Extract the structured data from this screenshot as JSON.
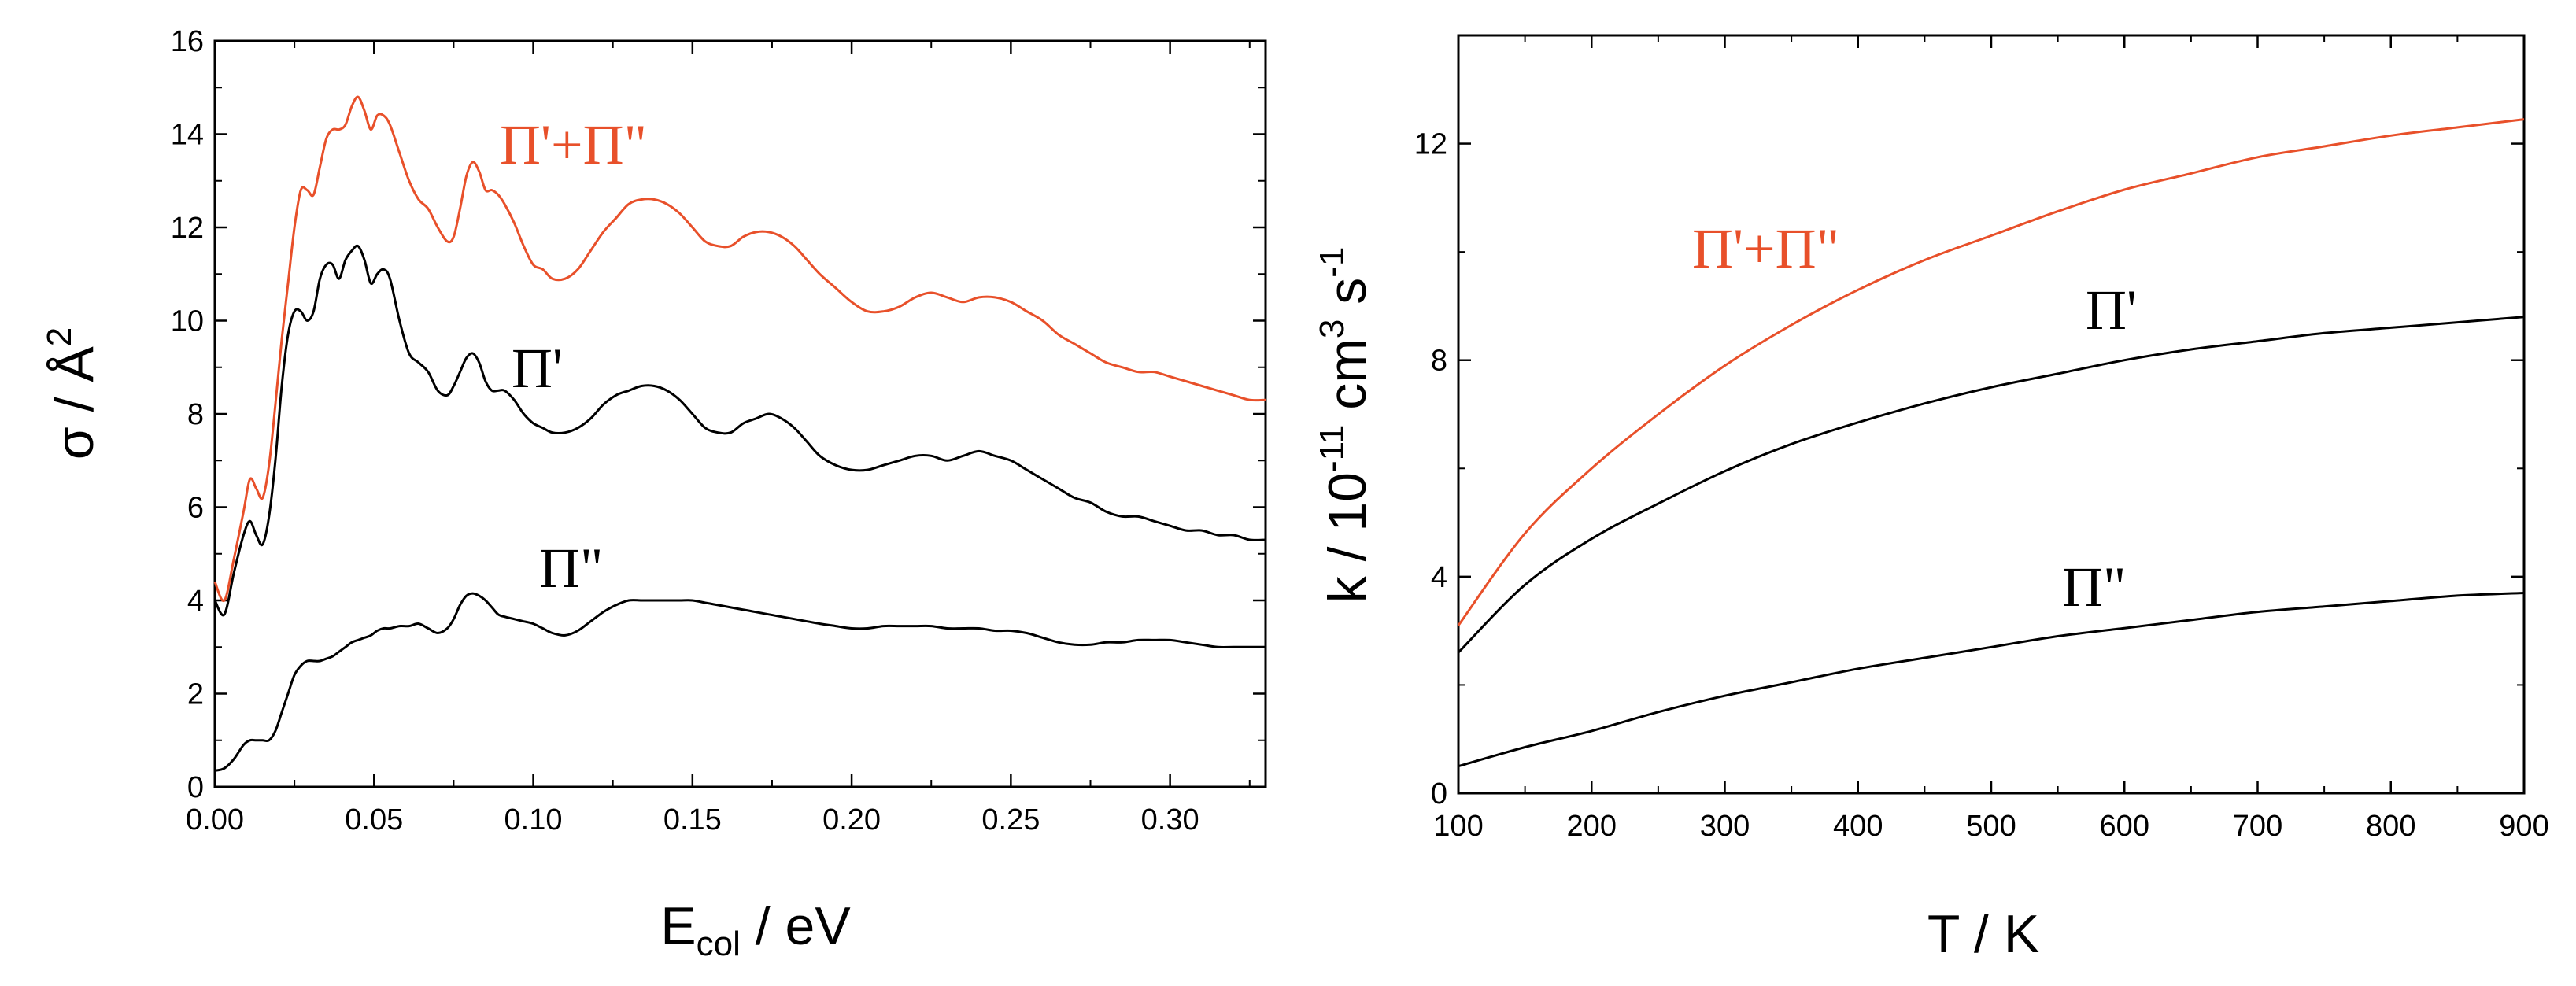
{
  "chart_data": [
    {
      "type": "line",
      "xlabel_main": "E",
      "xlabel_sub": "col",
      "xlabel_rest": " / eV",
      "ylabel_main": "σ / Å",
      "ylabel_sup": "2",
      "xlim": [
        0,
        0.33
      ],
      "ylim": [
        0,
        16
      ],
      "xticks": [
        0.0,
        0.05,
        0.1,
        0.15,
        0.2,
        0.25,
        0.3
      ],
      "xtick_labels": [
        "0.00",
        "0.05",
        "0.10",
        "0.15",
        "0.20",
        "0.25",
        "0.30"
      ],
      "yticks": [
        0,
        2,
        4,
        6,
        8,
        10,
        12,
        14,
        16
      ],
      "ytick_labels": [
        "0",
        "2",
        "4",
        "6",
        "8",
        "10",
        "12",
        "14",
        "16"
      ],
      "series": [
        {
          "name": "Π'+Π\"",
          "color": "#e8502a",
          "label": "Π'+Π\"",
          "x": [
            0.0,
            0.003,
            0.006,
            0.009,
            0.011,
            0.013,
            0.015,
            0.017,
            0.019,
            0.021,
            0.023,
            0.025,
            0.027,
            0.029,
            0.031,
            0.033,
            0.035,
            0.037,
            0.039,
            0.041,
            0.043,
            0.045,
            0.047,
            0.049,
            0.051,
            0.053,
            0.055,
            0.058,
            0.061,
            0.064,
            0.067,
            0.07,
            0.073,
            0.075,
            0.077,
            0.079,
            0.081,
            0.083,
            0.085,
            0.087,
            0.089,
            0.091,
            0.094,
            0.097,
            0.1,
            0.103,
            0.106,
            0.11,
            0.114,
            0.118,
            0.122,
            0.126,
            0.13,
            0.134,
            0.138,
            0.142,
            0.146,
            0.15,
            0.154,
            0.158,
            0.162,
            0.166,
            0.17,
            0.174,
            0.178,
            0.182,
            0.186,
            0.19,
            0.195,
            0.2,
            0.205,
            0.21,
            0.215,
            0.22,
            0.225,
            0.23,
            0.235,
            0.24,
            0.245,
            0.25,
            0.255,
            0.26,
            0.265,
            0.27,
            0.275,
            0.28,
            0.285,
            0.29,
            0.295,
            0.3,
            0.305,
            0.31,
            0.315,
            0.32,
            0.325,
            0.33
          ],
          "y": [
            4.4,
            4.0,
            4.9,
            5.9,
            6.6,
            6.4,
            6.2,
            6.9,
            8.2,
            9.6,
            10.8,
            12.0,
            12.8,
            12.8,
            12.7,
            13.3,
            13.9,
            14.1,
            14.1,
            14.2,
            14.6,
            14.8,
            14.5,
            14.1,
            14.4,
            14.4,
            14.2,
            13.6,
            13.0,
            12.6,
            12.4,
            12.0,
            11.7,
            11.8,
            12.4,
            13.1,
            13.4,
            13.2,
            12.8,
            12.8,
            12.7,
            12.5,
            12.1,
            11.6,
            11.2,
            11.1,
            10.9,
            10.9,
            11.1,
            11.5,
            11.9,
            12.2,
            12.5,
            12.6,
            12.6,
            12.5,
            12.3,
            12.0,
            11.7,
            11.6,
            11.6,
            11.8,
            11.9,
            11.9,
            11.8,
            11.6,
            11.3,
            11.0,
            10.7,
            10.4,
            10.2,
            10.2,
            10.3,
            10.5,
            10.6,
            10.5,
            10.4,
            10.5,
            10.5,
            10.4,
            10.2,
            10.0,
            9.7,
            9.5,
            9.3,
            9.1,
            9.0,
            8.9,
            8.9,
            8.8,
            8.7,
            8.6,
            8.5,
            8.4,
            8.3,
            8.3
          ]
        },
        {
          "name": "Π'",
          "color": "#000000",
          "label": "Π'",
          "x": [
            0.0,
            0.003,
            0.006,
            0.009,
            0.011,
            0.013,
            0.015,
            0.017,
            0.019,
            0.021,
            0.023,
            0.025,
            0.027,
            0.029,
            0.031,
            0.033,
            0.035,
            0.037,
            0.039,
            0.041,
            0.043,
            0.045,
            0.047,
            0.049,
            0.051,
            0.053,
            0.055,
            0.058,
            0.061,
            0.064,
            0.067,
            0.07,
            0.073,
            0.075,
            0.077,
            0.079,
            0.081,
            0.083,
            0.085,
            0.087,
            0.089,
            0.091,
            0.094,
            0.097,
            0.1,
            0.103,
            0.106,
            0.11,
            0.114,
            0.118,
            0.122,
            0.126,
            0.13,
            0.134,
            0.138,
            0.142,
            0.146,
            0.15,
            0.154,
            0.158,
            0.162,
            0.166,
            0.17,
            0.174,
            0.178,
            0.182,
            0.186,
            0.19,
            0.195,
            0.2,
            0.205,
            0.21,
            0.215,
            0.22,
            0.225,
            0.23,
            0.235,
            0.24,
            0.245,
            0.25,
            0.255,
            0.26,
            0.265,
            0.27,
            0.275,
            0.28,
            0.285,
            0.29,
            0.295,
            0.3,
            0.305,
            0.31,
            0.315,
            0.32,
            0.325,
            0.33
          ],
          "y": [
            4.0,
            3.7,
            4.6,
            5.4,
            5.7,
            5.4,
            5.2,
            5.8,
            7.0,
            8.6,
            9.7,
            10.2,
            10.2,
            10.0,
            10.2,
            10.9,
            11.2,
            11.2,
            10.9,
            11.3,
            11.5,
            11.6,
            11.3,
            10.8,
            11.0,
            11.1,
            10.9,
            10.0,
            9.3,
            9.1,
            8.9,
            8.5,
            8.4,
            8.6,
            8.9,
            9.2,
            9.3,
            9.1,
            8.7,
            8.5,
            8.5,
            8.5,
            8.3,
            8.0,
            7.8,
            7.7,
            7.6,
            7.6,
            7.7,
            7.9,
            8.2,
            8.4,
            8.5,
            8.6,
            8.6,
            8.5,
            8.3,
            8.0,
            7.7,
            7.6,
            7.6,
            7.8,
            7.9,
            8.0,
            7.9,
            7.7,
            7.4,
            7.1,
            6.9,
            6.8,
            6.8,
            6.9,
            7.0,
            7.1,
            7.1,
            7.0,
            7.1,
            7.2,
            7.1,
            7.0,
            6.8,
            6.6,
            6.4,
            6.2,
            6.1,
            5.9,
            5.8,
            5.8,
            5.7,
            5.6,
            5.5,
            5.5,
            5.4,
            5.4,
            5.3,
            5.3
          ]
        },
        {
          "name": "Π\"",
          "color": "#000000",
          "label": "Π\"",
          "x": [
            0.0,
            0.003,
            0.006,
            0.009,
            0.011,
            0.013,
            0.015,
            0.017,
            0.019,
            0.021,
            0.023,
            0.025,
            0.027,
            0.029,
            0.031,
            0.033,
            0.035,
            0.037,
            0.039,
            0.041,
            0.043,
            0.045,
            0.047,
            0.049,
            0.051,
            0.053,
            0.055,
            0.058,
            0.061,
            0.064,
            0.067,
            0.07,
            0.073,
            0.075,
            0.077,
            0.079,
            0.081,
            0.083,
            0.085,
            0.087,
            0.089,
            0.091,
            0.094,
            0.097,
            0.1,
            0.103,
            0.106,
            0.11,
            0.114,
            0.118,
            0.122,
            0.126,
            0.13,
            0.134,
            0.138,
            0.142,
            0.146,
            0.15,
            0.154,
            0.158,
            0.162,
            0.166,
            0.17,
            0.174,
            0.178,
            0.182,
            0.186,
            0.19,
            0.195,
            0.2,
            0.205,
            0.21,
            0.215,
            0.22,
            0.225,
            0.23,
            0.235,
            0.24,
            0.245,
            0.25,
            0.255,
            0.26,
            0.265,
            0.27,
            0.275,
            0.28,
            0.285,
            0.29,
            0.295,
            0.3,
            0.305,
            0.31,
            0.315,
            0.32,
            0.325,
            0.33
          ],
          "y": [
            0.35,
            0.4,
            0.6,
            0.9,
            1.0,
            1.0,
            1.0,
            1.0,
            1.2,
            1.6,
            2.0,
            2.4,
            2.6,
            2.7,
            2.7,
            2.7,
            2.75,
            2.8,
            2.9,
            3.0,
            3.1,
            3.15,
            3.2,
            3.25,
            3.35,
            3.4,
            3.4,
            3.45,
            3.45,
            3.5,
            3.4,
            3.3,
            3.4,
            3.6,
            3.9,
            4.1,
            4.15,
            4.1,
            4.0,
            3.85,
            3.7,
            3.65,
            3.6,
            3.55,
            3.5,
            3.4,
            3.3,
            3.25,
            3.35,
            3.55,
            3.75,
            3.9,
            4.0,
            4.0,
            4.0,
            4.0,
            4.0,
            4.0,
            3.95,
            3.9,
            3.85,
            3.8,
            3.75,
            3.7,
            3.65,
            3.6,
            3.55,
            3.5,
            3.45,
            3.4,
            3.4,
            3.45,
            3.45,
            3.45,
            3.45,
            3.4,
            3.4,
            3.4,
            3.35,
            3.35,
            3.3,
            3.2,
            3.1,
            3.05,
            3.05,
            3.1,
            3.1,
            3.15,
            3.15,
            3.15,
            3.1,
            3.05,
            3.0,
            3.0,
            3.0,
            3.0
          ]
        }
      ]
    },
    {
      "type": "line",
      "xlabel": "T / K",
      "ylabel_parts": [
        "k / 10",
        "-11",
        " cm",
        "3",
        " s",
        "-1"
      ],
      "xlim": [
        100,
        900
      ],
      "ylim": [
        0,
        14
      ],
      "xticks": [
        100,
        200,
        300,
        400,
        500,
        600,
        700,
        800,
        900
      ],
      "xtick_labels": [
        "100",
        "200",
        "300",
        "400",
        "500",
        "600",
        "700",
        "800",
        "900"
      ],
      "yticks": [
        0,
        4,
        8,
        12
      ],
      "ytick_labels": [
        "0",
        "4",
        "8",
        "12"
      ],
      "series": [
        {
          "name": "Π'+Π\"",
          "color": "#e8502a",
          "label": "Π'+Π\"",
          "x": [
            100,
            150,
            200,
            250,
            300,
            350,
            400,
            450,
            500,
            550,
            600,
            650,
            700,
            750,
            800,
            850,
            900
          ],
          "y": [
            3.1,
            4.8,
            6.0,
            7.0,
            7.9,
            8.65,
            9.3,
            9.85,
            10.3,
            10.75,
            11.15,
            11.45,
            11.75,
            11.95,
            12.15,
            12.3,
            12.45
          ]
        },
        {
          "name": "Π'",
          "color": "#000000",
          "label": "Π'",
          "x": [
            100,
            150,
            200,
            250,
            300,
            350,
            400,
            450,
            500,
            550,
            600,
            650,
            700,
            750,
            800,
            850,
            900
          ],
          "y": [
            2.6,
            3.85,
            4.7,
            5.35,
            5.95,
            6.45,
            6.85,
            7.2,
            7.5,
            7.75,
            8.0,
            8.2,
            8.35,
            8.5,
            8.6,
            8.7,
            8.8
          ]
        },
        {
          "name": "Π\"",
          "color": "#000000",
          "label": "Π\"",
          "x": [
            100,
            150,
            200,
            250,
            300,
            350,
            400,
            450,
            500,
            550,
            600,
            650,
            700,
            750,
            800,
            850,
            900
          ],
          "y": [
            0.5,
            0.85,
            1.15,
            1.5,
            1.8,
            2.05,
            2.3,
            2.5,
            2.7,
            2.9,
            3.05,
            3.2,
            3.35,
            3.45,
            3.55,
            3.65,
            3.7
          ]
        }
      ]
    }
  ]
}
